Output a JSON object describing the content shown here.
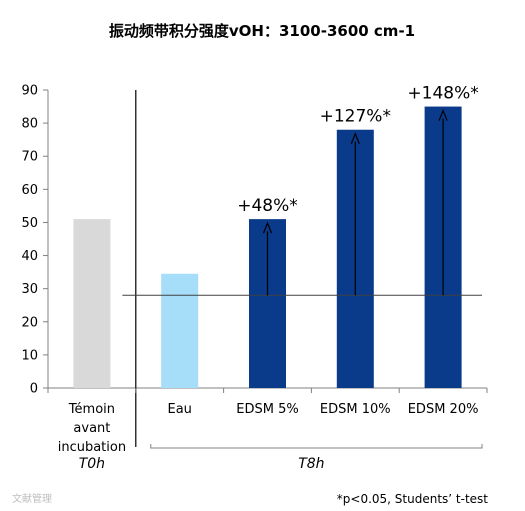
{
  "chart_data": {
    "type": "bar",
    "title": "振动频带积分强度vOH：3100-3600 cm-1",
    "categories": [
      "Témoin avant incubation",
      "Eau",
      "EDSM 5%",
      "EDSM 10%",
      "EDSM 20%"
    ],
    "category_lines": [
      [
        "Témoin",
        "avant",
        "incubation"
      ],
      [
        "Eau"
      ],
      [
        "EDSM 5%"
      ],
      [
        "EDSM 10%"
      ],
      [
        "EDSM 20%"
      ]
    ],
    "values": [
      51,
      34.5,
      51,
      78,
      85
    ],
    "colors": [
      "#d9d9d9",
      "#a6ddf8",
      "#0a3a8a",
      "#0a3a8a",
      "#0a3a8a"
    ],
    "annotations": [
      "",
      "",
      "+48%*",
      "+127%*",
      "+148%*"
    ],
    "reference_line": 28,
    "ylim": [
      0,
      90
    ],
    "yticks": [
      0,
      10,
      20,
      30,
      40,
      50,
      60,
      70,
      80,
      90
    ],
    "groups": [
      {
        "label": "T0h",
        "categories": [
          0
        ]
      },
      {
        "label": "T8h",
        "categories": [
          1,
          2,
          3,
          4
        ]
      }
    ],
    "footnote": "*p<0.05, Students’ t-test",
    "watermark": "文献管理",
    "grid": false,
    "legend": "none"
  }
}
